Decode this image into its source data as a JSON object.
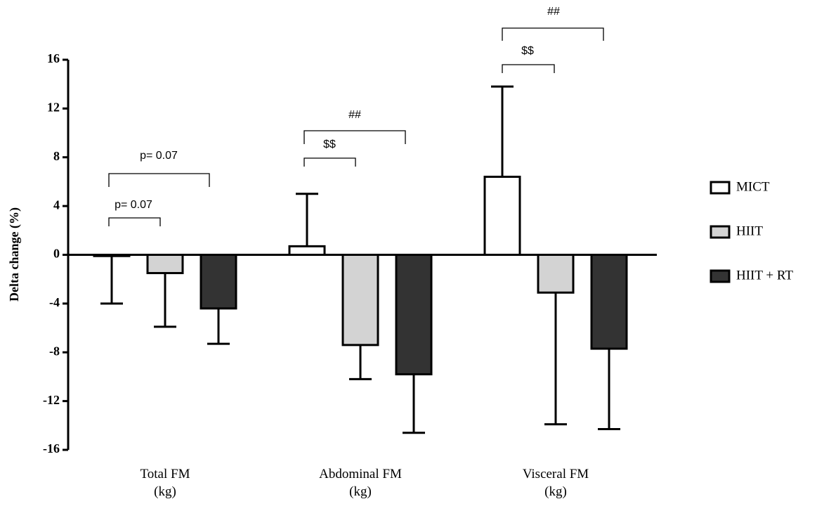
{
  "chart_data": {
    "type": "bar",
    "y_label": "Delta change (%)",
    "categories": [
      "Total FM\n(kg)",
      "Abdominal FM\n(kg)",
      "Visceral FM\n(kg)"
    ],
    "series": [
      {
        "name": "MICT",
        "color": "#ffffff",
        "values": [
          -0.1,
          0.7,
          6.4
        ],
        "errors": [
          3.9,
          4.3,
          7.4
        ]
      },
      {
        "name": "HIIT",
        "color": "#d3d3d3",
        "values": [
          -1.5,
          -7.4,
          -3.1
        ],
        "errors": [
          4.4,
          2.8,
          10.8
        ]
      },
      {
        "name": "HIIT + RT",
        "color": "#333333",
        "values": [
          -4.4,
          -9.8,
          -7.7
        ],
        "errors": [
          2.9,
          4.8,
          6.6
        ]
      }
    ],
    "ylim": [
      -16,
      16
    ],
    "yticks": [
      -16,
      -12,
      -8,
      -4,
      0,
      4,
      8,
      12,
      16
    ],
    "annotations": [
      "p= 0.07",
      "p= 0.07",
      "$$",
      "##",
      "$$",
      "##"
    ]
  }
}
